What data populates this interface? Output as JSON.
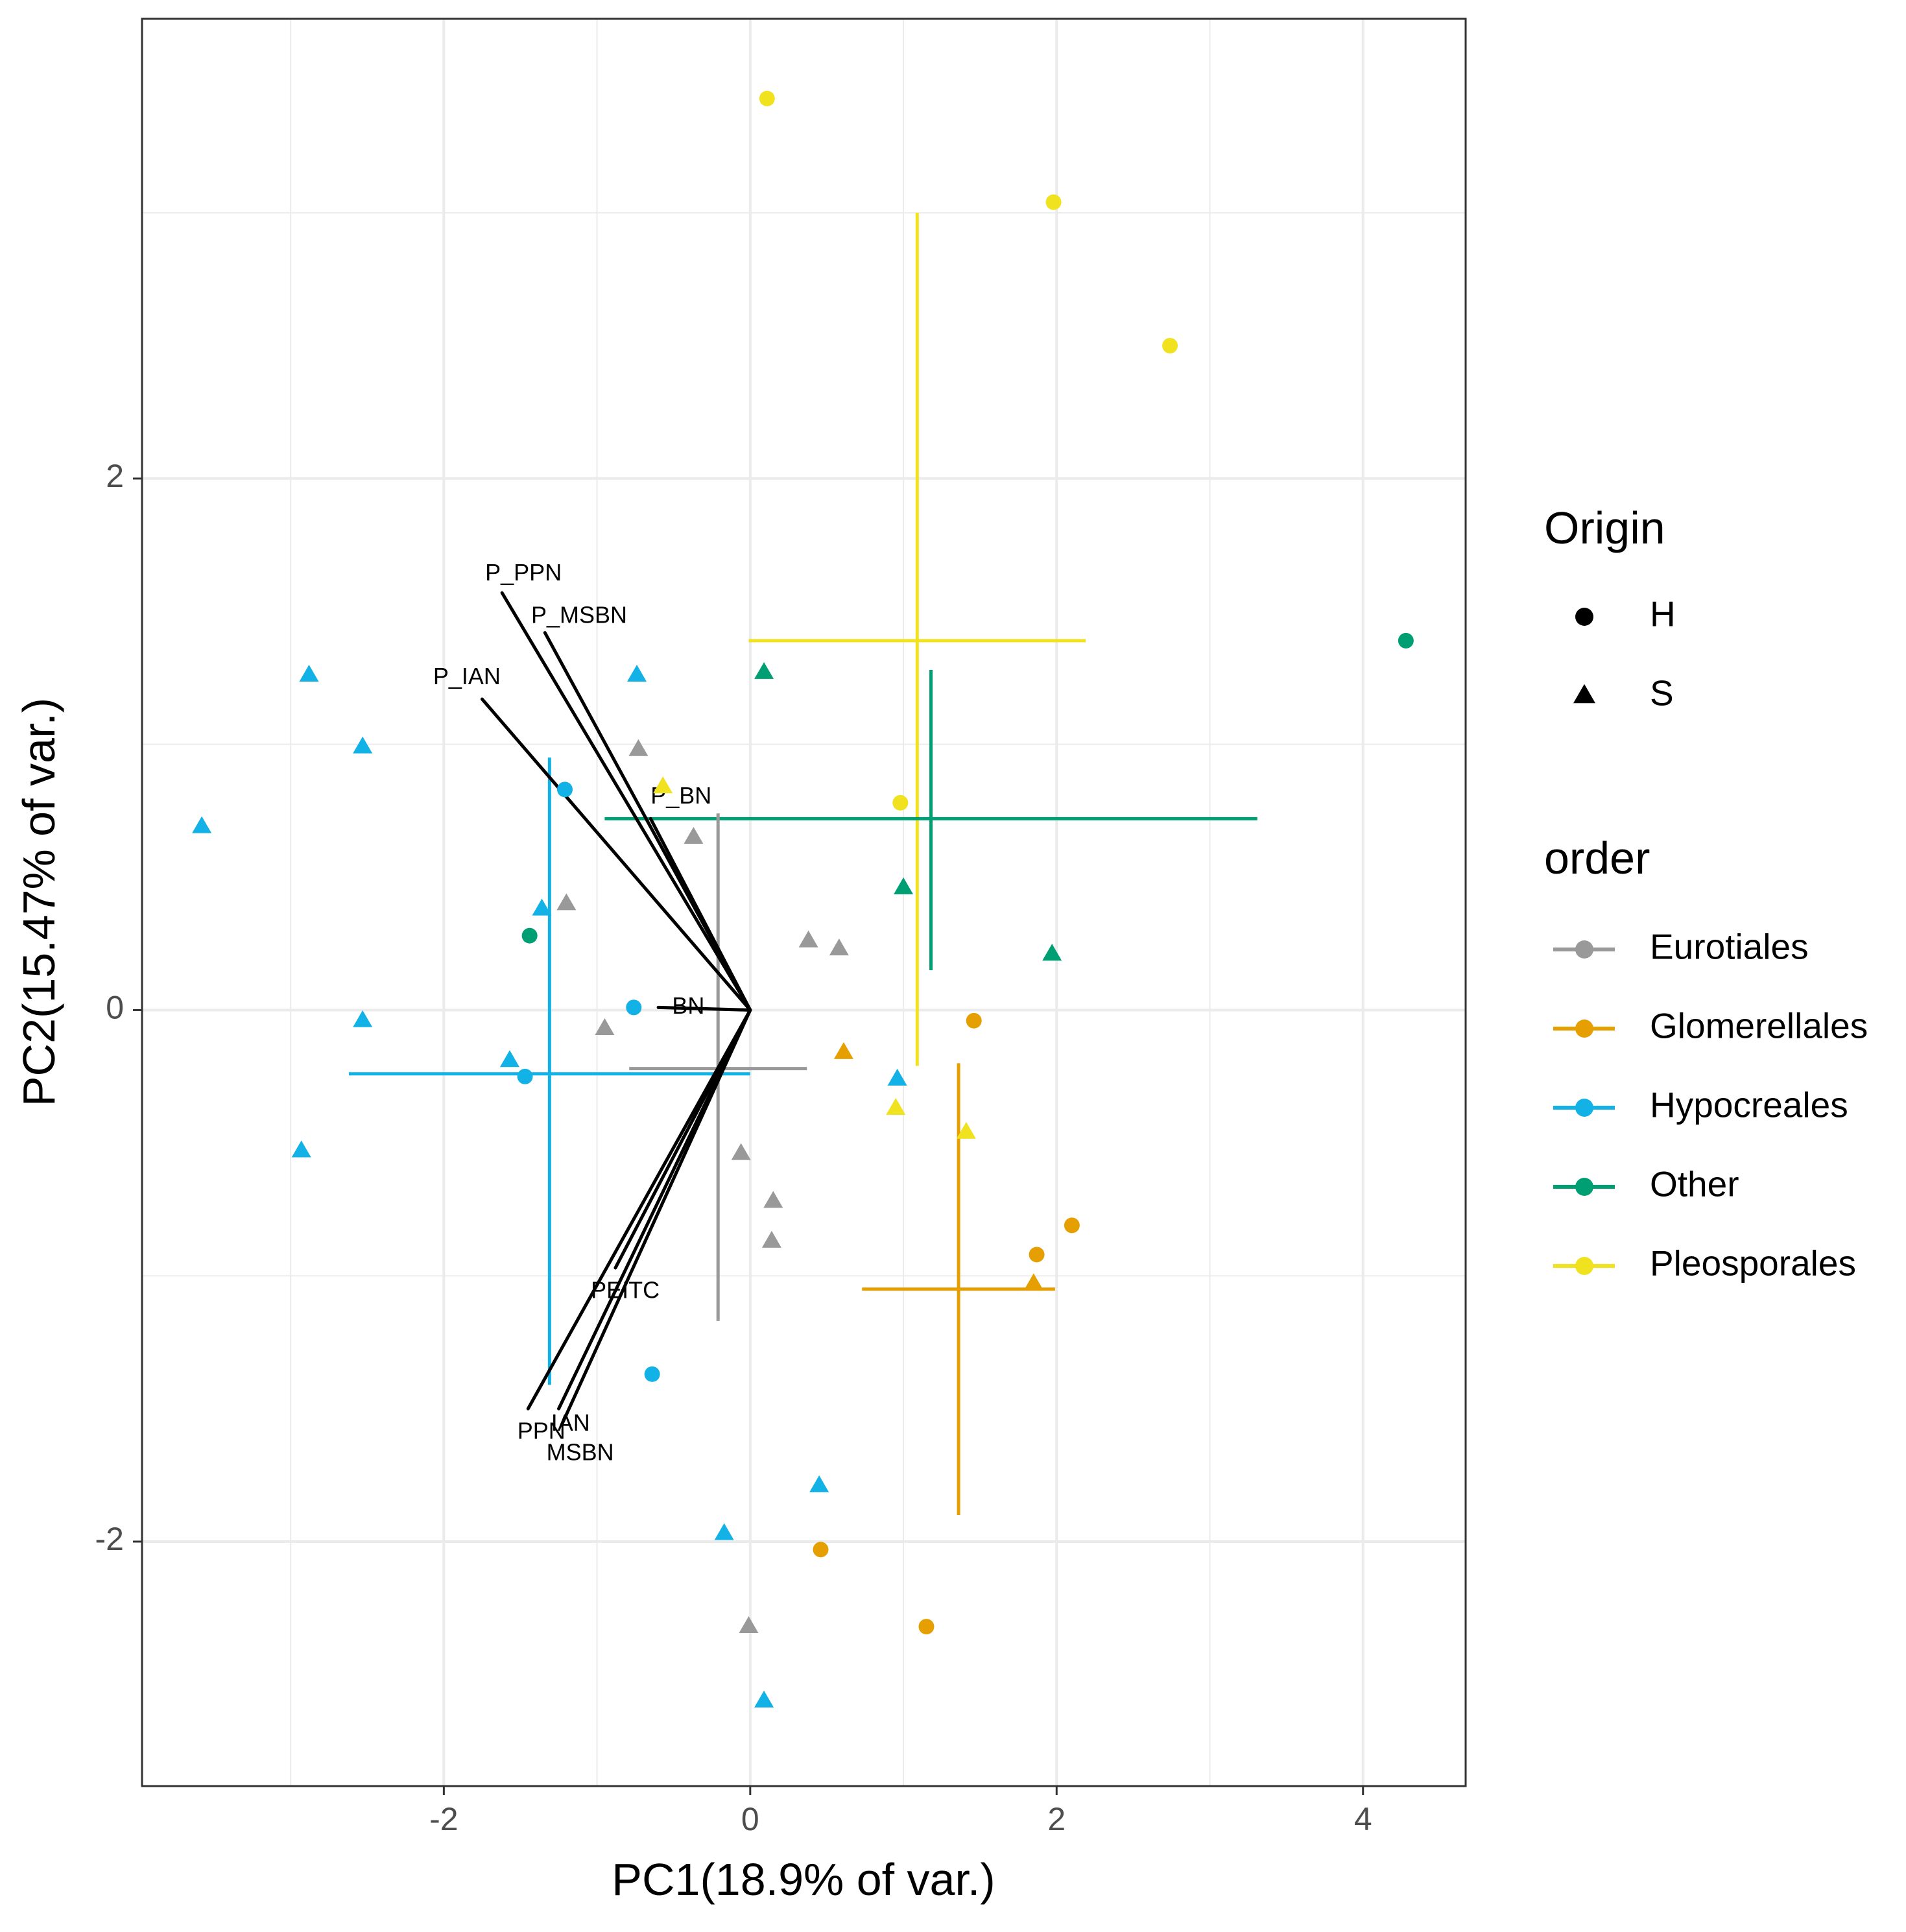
{
  "colors": {
    "Eurotiales": "#999999",
    "Glomerellales": "#E69F00",
    "Hypocreales": "#12B1E6",
    "Other": "#009E73",
    "Pleosporales": "#F0E21E",
    "arrow": "#000000",
    "grid": "#EBEBEB",
    "panel_border": "#333333",
    "tick_text": "#4D4D4D"
  },
  "chart_data": {
    "type": "scatter",
    "subtype": "pca-biplot",
    "xlabel": "PC1(18.9% of var.)",
    "ylabel": "PC2(15.47% of var.)",
    "xlim": [
      -3.97,
      4.67
    ],
    "ylim": [
      -2.92,
      3.73
    ],
    "x_ticks": [
      -2,
      0,
      2,
      4
    ],
    "x_tick_labels": [
      "-2",
      "0",
      "2",
      "4"
    ],
    "y_ticks": [
      -2,
      0,
      2
    ],
    "y_tick_labels": [
      "-2",
      "0",
      "2"
    ],
    "x_minor_ticks": [
      -3,
      -1,
      1,
      3
    ],
    "y_minor_ticks": [
      -1,
      1,
      3
    ],
    "grid": true,
    "legends": [
      {
        "title": "Origin",
        "type": "shape",
        "entries": [
          {
            "label": "H",
            "shape": "circle"
          },
          {
            "label": "S",
            "shape": "triangle"
          }
        ]
      },
      {
        "title": "order",
        "type": "color",
        "entries": [
          {
            "label": "Eurotiales",
            "key": "Eurotiales"
          },
          {
            "label": "Glomerellales",
            "key": "Glomerellales"
          },
          {
            "label": "Hypocreales",
            "key": "Hypocreales"
          },
          {
            "label": "Other",
            "key": "Other"
          },
          {
            "label": "Pleosporales",
            "key": "Pleosporales"
          }
        ]
      }
    ],
    "points": [
      {
        "x": 0.11,
        "y": 3.43,
        "order": "Pleosporales",
        "origin": "H"
      },
      {
        "x": 1.98,
        "y": 3.04,
        "order": "Pleosporales",
        "origin": "H"
      },
      {
        "x": 2.74,
        "y": 2.5,
        "order": "Pleosporales",
        "origin": "H"
      },
      {
        "x": 0.98,
        "y": 0.78,
        "order": "Pleosporales",
        "origin": "H"
      },
      {
        "x": -0.57,
        "y": 0.84,
        "order": "Pleosporales",
        "origin": "S"
      },
      {
        "x": 0.95,
        "y": -0.37,
        "order": "Pleosporales",
        "origin": "S"
      },
      {
        "x": 1.41,
        "y": -0.46,
        "order": "Pleosporales",
        "origin": "S"
      },
      {
        "x": 4.28,
        "y": 1.39,
        "order": "Other",
        "origin": "H"
      },
      {
        "x": -1.44,
        "y": 0.28,
        "order": "Other",
        "origin": "H"
      },
      {
        "x": 0.09,
        "y": 1.27,
        "order": "Other",
        "origin": "S"
      },
      {
        "x": 1.0,
        "y": 0.46,
        "order": "Other",
        "origin": "S"
      },
      {
        "x": 1.97,
        "y": 0.21,
        "order": "Other",
        "origin": "S"
      },
      {
        "x": -1.21,
        "y": 0.83,
        "order": "Hypocreales",
        "origin": "H"
      },
      {
        "x": -0.76,
        "y": 0.01,
        "order": "Hypocreales",
        "origin": "H"
      },
      {
        "x": -1.47,
        "y": -0.25,
        "order": "Hypocreales",
        "origin": "H"
      },
      {
        "x": -0.64,
        "y": -1.37,
        "order": "Hypocreales",
        "origin": "H"
      },
      {
        "x": -2.88,
        "y": 1.26,
        "order": "Hypocreales",
        "origin": "S"
      },
      {
        "x": -2.53,
        "y": 0.99,
        "order": "Hypocreales",
        "origin": "S"
      },
      {
        "x": -3.58,
        "y": 0.69,
        "order": "Hypocreales",
        "origin": "S"
      },
      {
        "x": -0.74,
        "y": 1.26,
        "order": "Hypocreales",
        "origin": "S"
      },
      {
        "x": -1.36,
        "y": 0.38,
        "order": "Hypocreales",
        "origin": "S"
      },
      {
        "x": -2.53,
        "y": -0.04,
        "order": "Hypocreales",
        "origin": "S"
      },
      {
        "x": -1.57,
        "y": -0.19,
        "order": "Hypocreales",
        "origin": "S"
      },
      {
        "x": -2.93,
        "y": -0.53,
        "order": "Hypocreales",
        "origin": "S"
      },
      {
        "x": 0.96,
        "y": -0.26,
        "order": "Hypocreales",
        "origin": "S"
      },
      {
        "x": 0.45,
        "y": -1.79,
        "order": "Hypocreales",
        "origin": "S"
      },
      {
        "x": -0.17,
        "y": -1.97,
        "order": "Hypocreales",
        "origin": "S"
      },
      {
        "x": 0.09,
        "y": -2.6,
        "order": "Hypocreales",
        "origin": "S"
      },
      {
        "x": 1.46,
        "y": -0.04,
        "order": "Glomerellales",
        "origin": "H"
      },
      {
        "x": 2.1,
        "y": -0.81,
        "order": "Glomerellales",
        "origin": "H"
      },
      {
        "x": 1.87,
        "y": -0.92,
        "order": "Glomerellales",
        "origin": "H"
      },
      {
        "x": 0.46,
        "y": -2.03,
        "order": "Glomerellales",
        "origin": "H"
      },
      {
        "x": 1.15,
        "y": -2.32,
        "order": "Glomerellales",
        "origin": "H"
      },
      {
        "x": 0.61,
        "y": -0.16,
        "order": "Glomerellales",
        "origin": "S"
      },
      {
        "x": 1.85,
        "y": -1.03,
        "order": "Glomerellales",
        "origin": "S"
      },
      {
        "x": -0.73,
        "y": 0.98,
        "order": "Eurotiales",
        "origin": "S"
      },
      {
        "x": -0.37,
        "y": 0.65,
        "order": "Eurotiales",
        "origin": "S"
      },
      {
        "x": -1.2,
        "y": 0.4,
        "order": "Eurotiales",
        "origin": "S"
      },
      {
        "x": 0.38,
        "y": 0.26,
        "order": "Eurotiales",
        "origin": "S"
      },
      {
        "x": 0.58,
        "y": 0.23,
        "order": "Eurotiales",
        "origin": "S"
      },
      {
        "x": -0.95,
        "y": -0.07,
        "order": "Eurotiales",
        "origin": "S"
      },
      {
        "x": -0.06,
        "y": -0.54,
        "order": "Eurotiales",
        "origin": "S"
      },
      {
        "x": 0.15,
        "y": -0.72,
        "order": "Eurotiales",
        "origin": "S"
      },
      {
        "x": 0.14,
        "y": -0.87,
        "order": "Eurotiales",
        "origin": "S"
      },
      {
        "x": -0.01,
        "y": -2.32,
        "order": "Eurotiales",
        "origin": "S"
      }
    ],
    "crosshairs": [
      {
        "order": "Pleosporales",
        "cx": 1.09,
        "cy": 1.39,
        "x_range": [
          -0.01,
          2.19
        ],
        "y_range": [
          -0.21,
          3.0
        ]
      },
      {
        "order": "Other",
        "cx": 1.18,
        "cy": 0.72,
        "x_range": [
          -0.95,
          3.31
        ],
        "y_range": [
          0.15,
          1.28
        ]
      },
      {
        "order": "Hypocreales",
        "cx": -1.31,
        "cy": -0.24,
        "x_range": [
          -2.62,
          0.0
        ],
        "y_range": [
          -1.41,
          0.95
        ]
      },
      {
        "order": "Glomerellales",
        "cx": 1.36,
        "cy": -1.05,
        "x_range": [
          0.73,
          1.99
        ],
        "y_range": [
          -1.9,
          -0.2
        ]
      },
      {
        "order": "Eurotiales",
        "cx": -0.21,
        "cy": -0.22,
        "x_range": [
          -0.79,
          0.37
        ],
        "y_range": [
          -1.17,
          0.74
        ]
      }
    ],
    "loadings": [
      {
        "label": "P_PPN",
        "x": -1.62,
        "y": 1.57,
        "label_x": -1.73,
        "label_y": 1.64
      },
      {
        "label": "P_MSBN",
        "x": -1.34,
        "y": 1.42,
        "label_x": -1.43,
        "label_y": 1.48
      },
      {
        "label": "P_IAN",
        "x": -1.75,
        "y": 1.17,
        "label_x": -2.07,
        "label_y": 1.25
      },
      {
        "label": "P_BN",
        "x": -0.65,
        "y": 0.72,
        "label_x": -0.65,
        "label_y": 0.8
      },
      {
        "label": "BN",
        "x": -0.6,
        "y": 0.01,
        "label_x": -0.51,
        "label_y": 0.01
      },
      {
        "label": "PEITC",
        "x": -0.88,
        "y": -0.97,
        "label_x": -1.04,
        "label_y": -1.06
      },
      {
        "label": "PPN",
        "x": -1.45,
        "y": -1.5,
        "label_x": -1.52,
        "label_y": -1.59
      },
      {
        "label": "IAN",
        "x": -1.25,
        "y": -1.5,
        "label_x": -1.3,
        "label_y": -1.56
      },
      {
        "label": "MSBN",
        "x": -1.23,
        "y": -1.56,
        "label_x": -1.33,
        "label_y": -1.67
      }
    ]
  }
}
